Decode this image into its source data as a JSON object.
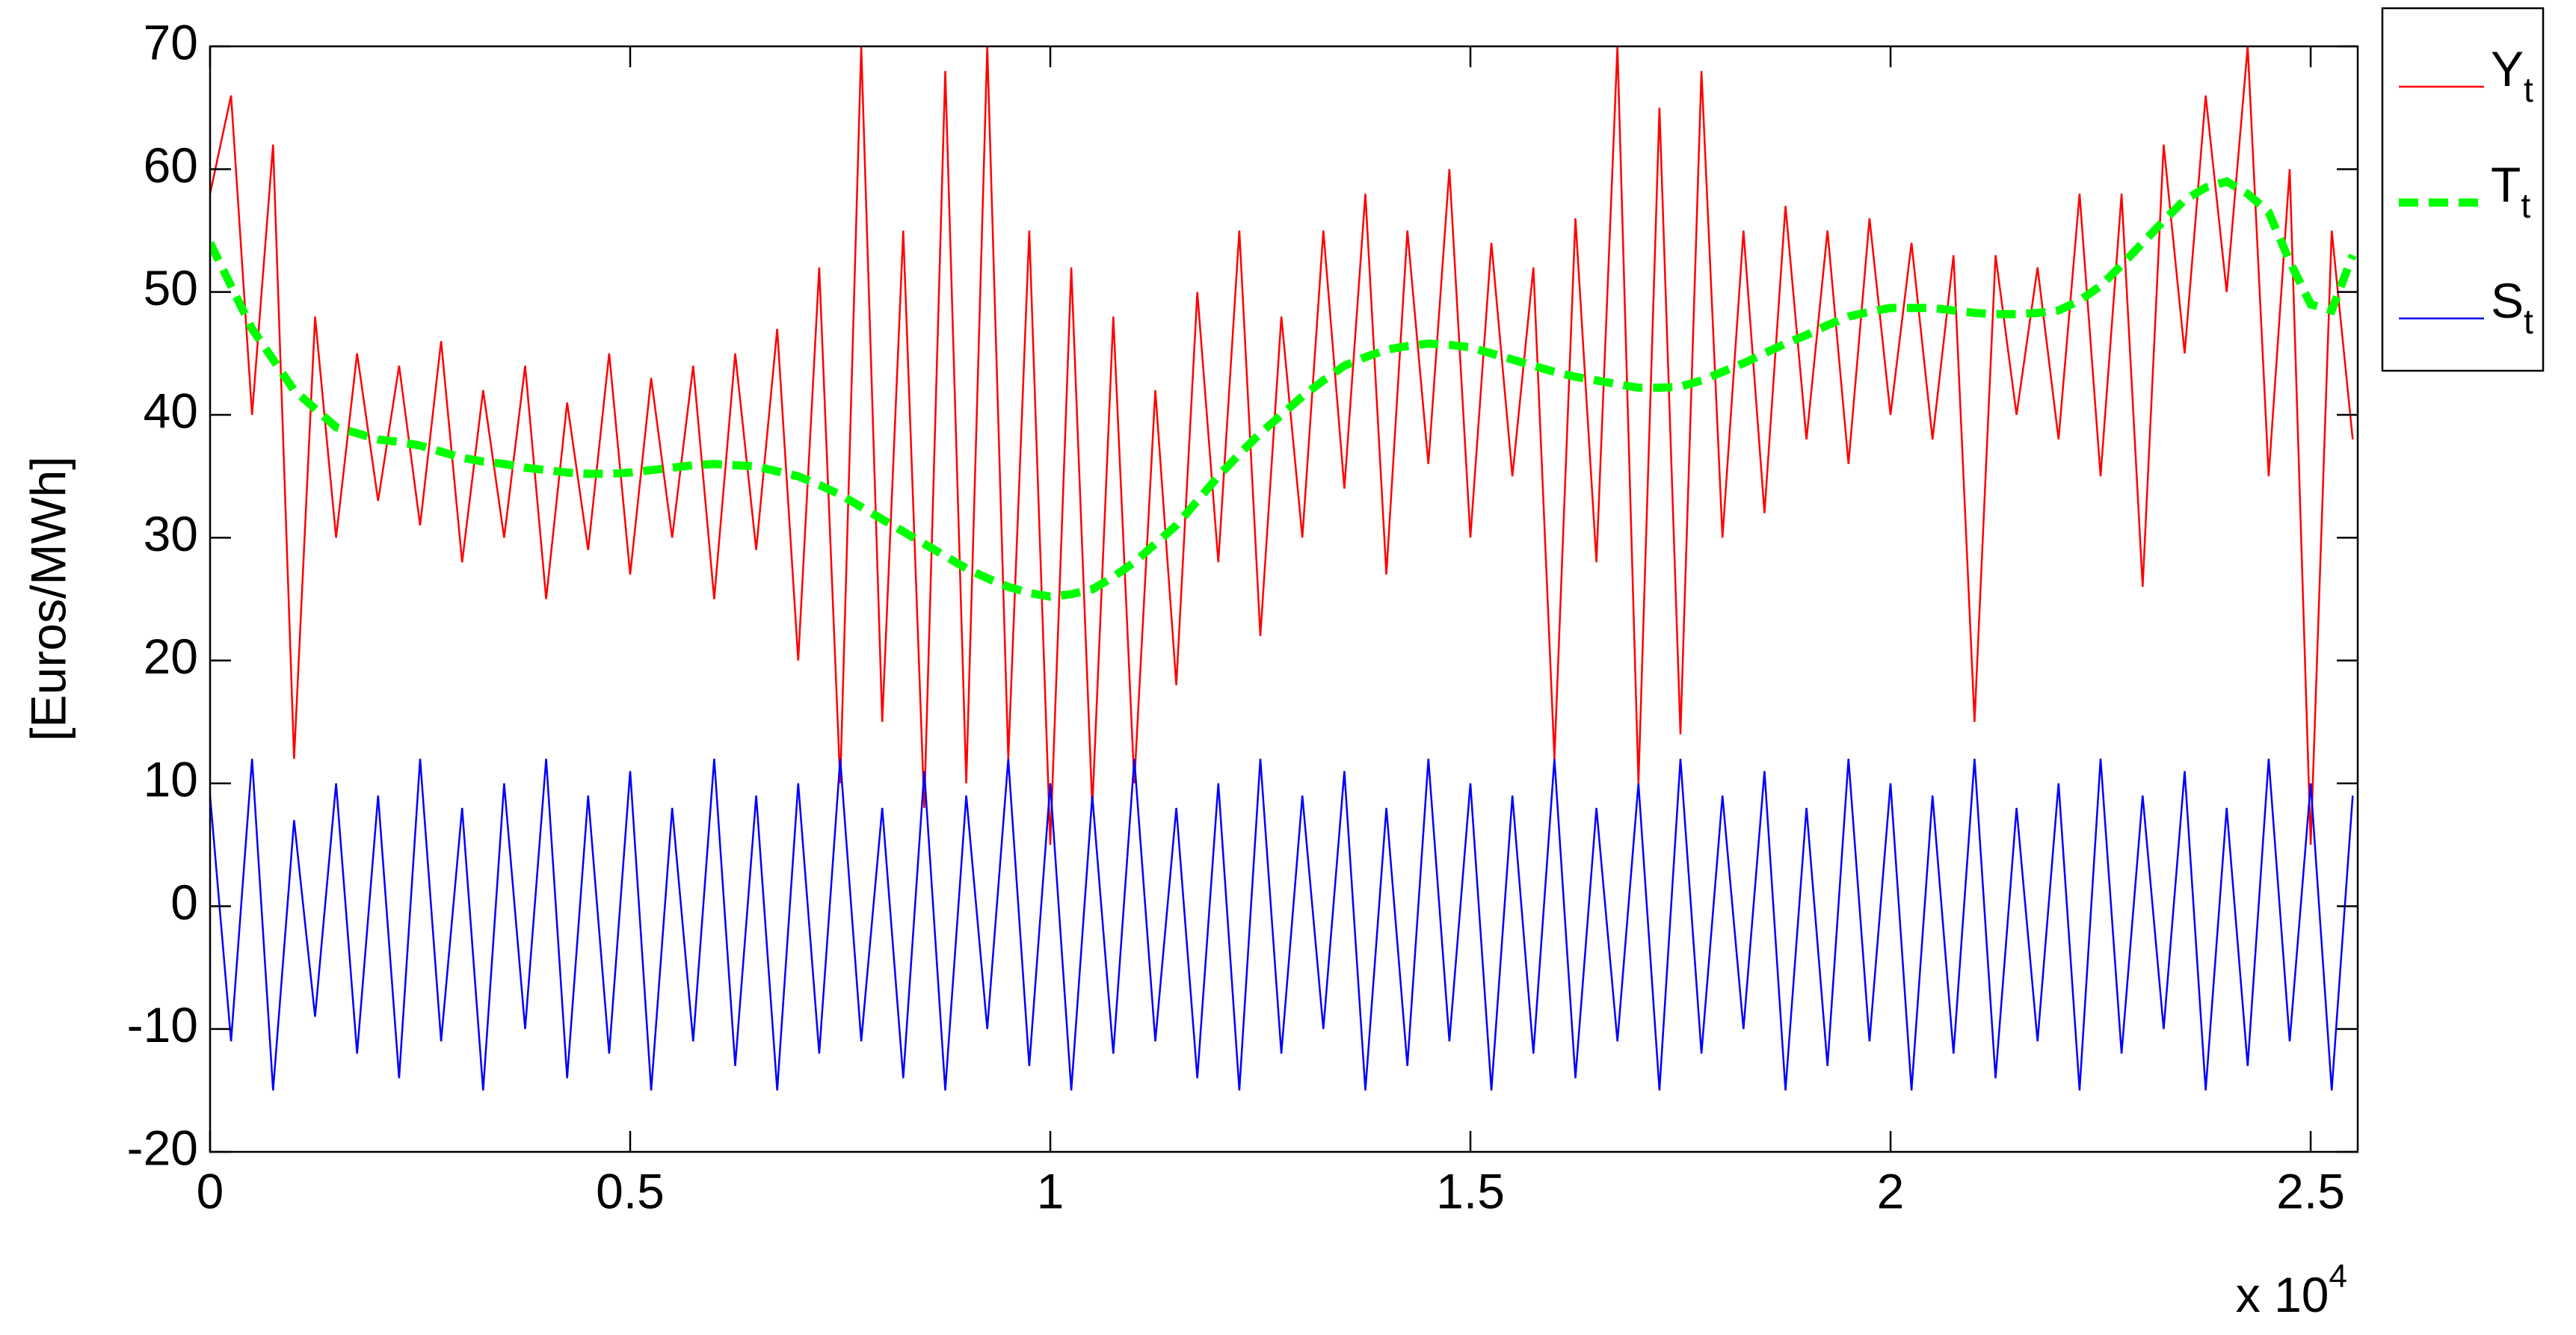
{
  "chart_data": {
    "type": "line",
    "ylabel": "[Euros/MWh]",
    "x_multiplier": {
      "base": "x 10",
      "exponent": "4"
    },
    "xlim": [
      0,
      25560
    ],
    "ylim": [
      -20,
      70
    ],
    "xticks": [
      0,
      {
        "value": 5000,
        "label": "0.5"
      },
      {
        "value": 10000,
        "label": "1"
      },
      {
        "value": 15000,
        "label": "1.5"
      },
      {
        "value": 20000,
        "label": "2"
      },
      {
        "value": 25000,
        "label": "2.5"
      }
    ],
    "yticks": [
      -20,
      -10,
      0,
      10,
      20,
      30,
      40,
      50,
      60,
      70
    ],
    "grid": false,
    "legend": "outside-top-right",
    "x": [
      0,
      250,
      500,
      750,
      1000,
      1250,
      1500,
      1750,
      2000,
      2250,
      2500,
      2750,
      3000,
      3250,
      3500,
      3750,
      4000,
      4250,
      4500,
      4750,
      5000,
      5250,
      5500,
      5750,
      6000,
      6250,
      6500,
      6750,
      7000,
      7250,
      7500,
      7750,
      8000,
      8250,
      8500,
      8750,
      9000,
      9250,
      9500,
      9750,
      10000,
      10250,
      10500,
      10750,
      11000,
      11250,
      11500,
      11750,
      12000,
      12250,
      12500,
      12750,
      13000,
      13250,
      13500,
      13750,
      14000,
      14250,
      14500,
      14750,
      15000,
      15250,
      15500,
      15750,
      16000,
      16250,
      16500,
      16750,
      17000,
      17250,
      17500,
      17750,
      18000,
      18250,
      18500,
      18750,
      19000,
      19250,
      19500,
      19750,
      20000,
      20250,
      20500,
      20750,
      21000,
      21250,
      21500,
      21750,
      22000,
      22250,
      22500,
      22750,
      23000,
      23250,
      23500,
      23750,
      24000,
      24250,
      24500,
      24750,
      25000,
      25250,
      25500
    ],
    "series": [
      {
        "name": "Y",
        "subscript": "t",
        "color": "#ff0000",
        "dashed": false,
        "values": [
          58,
          66,
          40,
          62,
          12,
          48,
          30,
          45,
          33,
          44,
          31,
          46,
          28,
          42,
          30,
          44,
          25,
          41,
          29,
          45,
          27,
          43,
          30,
          44,
          25,
          45,
          29,
          47,
          20,
          52,
          10,
          70,
          15,
          55,
          8,
          68,
          10,
          70,
          12,
          55,
          5,
          52,
          8,
          48,
          10,
          42,
          18,
          50,
          28,
          55,
          22,
          48,
          30,
          55,
          34,
          58,
          27,
          55,
          36,
          60,
          30,
          54,
          35,
          52,
          12,
          56,
          28,
          70,
          10,
          65,
          14,
          68,
          30,
          55,
          32,
          57,
          38,
          55,
          36,
          56,
          40,
          54,
          38,
          53,
          15,
          53,
          40,
          52,
          38,
          58,
          35,
          58,
          26,
          62,
          45,
          66,
          50,
          70,
          35,
          60,
          5,
          55,
          38
        ]
      },
      {
        "name": "T",
        "subscript": "t",
        "color": "#00ff00",
        "dashed": true,
        "values": [
          54,
          50.5,
          47,
          44.5,
          42,
          40.5,
          39,
          38.5,
          38,
          37.8,
          37.5,
          37,
          36.5,
          36.2,
          36,
          35.7,
          35.5,
          35.3,
          35.2,
          35.2,
          35.3,
          35.5,
          35.7,
          35.9,
          36,
          35.9,
          35.8,
          35.4,
          35,
          34.3,
          33.5,
          32.5,
          31.5,
          30.5,
          29.5,
          28.5,
          27.5,
          26.7,
          26,
          25.5,
          25.2,
          25.4,
          25.8,
          26.8,
          28,
          29.5,
          31,
          33,
          35,
          36.8,
          38.5,
          40,
          41.5,
          42.8,
          44,
          44.7,
          45.3,
          45.6,
          45.8,
          45.7,
          45.5,
          45,
          44.5,
          44,
          43.5,
          43.1,
          42.8,
          42.5,
          42.2,
          42.2,
          42.3,
          42.8,
          43.5,
          44.2,
          45,
          45.8,
          46.5,
          47.3,
          48,
          48.4,
          48.7,
          48.7,
          48.7,
          48.5,
          48.3,
          48.2,
          48.2,
          48.3,
          48.5,
          49.3,
          50.5,
          52.2,
          54,
          55.8,
          57.5,
          58.5,
          59,
          58,
          56.5,
          52.5,
          49,
          48.5,
          53
        ]
      },
      {
        "name": "S",
        "subscript": "t",
        "color": "#0000ff",
        "dashed": false,
        "values": [
          9,
          -11,
          12,
          -15,
          7,
          -9,
          10,
          -12,
          9,
          -14,
          12,
          -11,
          8,
          -15,
          10,
          -10,
          12,
          -14,
          9,
          -12,
          11,
          -15,
          8,
          -11,
          12,
          -13,
          9,
          -15,
          10,
          -12,
          12,
          -11,
          8,
          -14,
          11,
          -15,
          9,
          -10,
          12,
          -13,
          10,
          -15,
          9,
          -12,
          12,
          -11,
          8,
          -14,
          10,
          -15,
          12,
          -12,
          9,
          -10,
          11,
          -15,
          8,
          -13,
          12,
          -11,
          10,
          -15,
          9,
          -12,
          12,
          -14,
          8,
          -11,
          10,
          -15,
          12,
          -12,
          9,
          -10,
          11,
          -15,
          8,
          -13,
          12,
          -11,
          10,
          -15,
          9,
          -12,
          12,
          -14,
          8,
          -11,
          10,
          -15,
          12,
          -12,
          9,
          -10,
          11,
          -15,
          8,
          -13,
          12,
          -11,
          10,
          -15,
          9
        ]
      }
    ]
  }
}
